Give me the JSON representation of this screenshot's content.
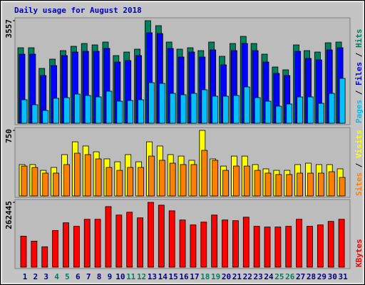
{
  "chart_data": {
    "type": "bar",
    "title": "Daily usage for August 2018",
    "title_color": "#0000c0",
    "categories": [
      "1",
      "2",
      "3",
      "4",
      "5",
      "6",
      "7",
      "8",
      "9",
      "10",
      "11",
      "12",
      "13",
      "14",
      "15",
      "16",
      "17",
      "18",
      "19",
      "20",
      "21",
      "22",
      "23",
      "24",
      "25",
      "26",
      "27",
      "28",
      "29",
      "30",
      "31"
    ],
    "category_color": "#000080",
    "weekend_color": "#00805c",
    "weekend": [
      false,
      false,
      false,
      true,
      true,
      false,
      false,
      false,
      false,
      false,
      true,
      true,
      false,
      false,
      false,
      false,
      false,
      true,
      true,
      false,
      false,
      false,
      false,
      false,
      true,
      true,
      false,
      false,
      false,
      false,
      false
    ],
    "legend_separator": " / ",
    "panels": [
      {
        "ylim": [
          0,
          3557
        ],
        "yticks": [
          3557
        ],
        "series": [
          {
            "name": "Hits",
            "color": "#00805c",
            "values": [
              2618,
              2618,
              1902,
              2223,
              2519,
              2668,
              2766,
              2717,
              2816,
              2347,
              2470,
              2569,
              3557,
              3384,
              2816,
              2569,
              2618,
              2519,
              2816,
              2322,
              2766,
              3013,
              2766,
              2396,
              1951,
              1853,
              2717,
              2519,
              2470,
              2791,
              2816
            ]
          },
          {
            "name": "Files",
            "color": "#0000ff",
            "values": [
              2396,
              2396,
              1655,
              2001,
              2347,
              2470,
              2495,
              2495,
              2594,
              2124,
              2174,
              2347,
              3137,
              3112,
              2594,
              2297,
              2470,
              2297,
              2544,
              2025,
              2519,
              2766,
              2519,
              2124,
              1729,
              1655,
              2495,
              2248,
              2198,
              2544,
              2618
            ]
          },
          {
            "name": "Pages",
            "color": "#00c0ff",
            "values": [
              815,
              642,
              445,
              865,
              889,
              1013,
              963,
              914,
              1112,
              766,
              790,
              815,
              1408,
              1383,
              1037,
              988,
              1037,
              1161,
              939,
              939,
              963,
              1260,
              889,
              766,
              593,
              667,
              914,
              914,
              692,
              1037,
              1556
            ]
          }
        ]
      },
      {
        "ylim": [
          0,
          750
        ],
        "yticks": [
          750
        ],
        "series": [
          {
            "name": "Visits",
            "color": "#ffff00",
            "values": [
              359,
              359,
              293,
              326,
              473,
              619,
              571,
              505,
              424,
              391,
              473,
              391,
              619,
              571,
              473,
              456,
              408,
              750,
              424,
              342,
              456,
              456,
              359,
              310,
              293,
              293,
              359,
              375,
              359,
              359,
              310
            ]
          },
          {
            "name": "Sites",
            "color": "#ff8000",
            "values": [
              342,
              326,
              261,
              261,
              359,
              489,
              473,
              424,
              326,
              293,
              326,
              326,
              456,
              408,
              375,
              359,
              359,
              522,
              408,
              293,
              342,
              342,
              293,
              261,
              245,
              245,
              261,
              261,
              261,
              277,
              212
            ]
          }
        ]
      },
      {
        "ylim": [
          0,
          262445
        ],
        "yticks": [
          262445
        ],
        "series": [
          {
            "name": "KBytes",
            "color": "#ff0000",
            "values": [
              125532,
              105561,
              82737,
              148356,
              179739,
              165474,
              194004,
              194004,
              245358,
              211122,
              222534,
              199710,
              262445,
              251064,
              228240,
              191151,
              171180,
              182592,
              211122,
              191151,
              188298,
              202563,
              165474,
              162621,
              162621,
              165474,
              194004,
              165474,
              171180,
              185445,
              194004
            ]
          }
        ]
      }
    ]
  }
}
